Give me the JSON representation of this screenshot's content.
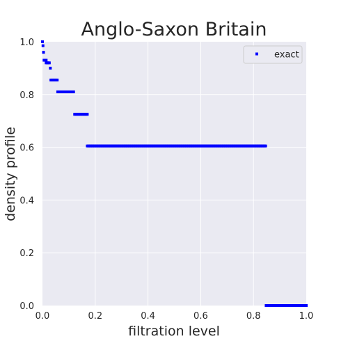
{
  "chart_data": {
    "type": "scatter",
    "title": "Anglo-Saxon Britain",
    "xlabel": "filtration level",
    "ylabel": "density profile",
    "xlim": [
      0,
      1
    ],
    "ylim": [
      0,
      1
    ],
    "x_ticks": [
      "0.0",
      "0.2",
      "0.4",
      "0.6",
      "0.8",
      "1.0"
    ],
    "y_ticks": [
      "0.0",
      "0.2",
      "0.4",
      "0.6",
      "0.8",
      "1.0"
    ],
    "grid": true,
    "legend_position": "top-right",
    "series": [
      {
        "name": "exact",
        "color": "#0000ff",
        "marker": "square",
        "segments": [
          {
            "y": 1.0,
            "x_start": 0.0,
            "x_end": 0.0
          },
          {
            "y": 0.985,
            "x_start": 0.002,
            "x_end": 0.002
          },
          {
            "y": 0.96,
            "x_start": 0.004,
            "x_end": 0.004
          },
          {
            "y": 0.93,
            "x_start": 0.006,
            "x_end": 0.012
          },
          {
            "y": 0.92,
            "x_start": 0.014,
            "x_end": 0.026
          },
          {
            "y": 0.9,
            "x_start": 0.03,
            "x_end": 0.03
          },
          {
            "y": 0.855,
            "x_start": 0.032,
            "x_end": 0.056
          },
          {
            "y": 0.81,
            "x_start": 0.058,
            "x_end": 0.12
          },
          {
            "y": 0.725,
            "x_start": 0.122,
            "x_end": 0.168
          },
          {
            "y": 0.605,
            "x_start": 0.17,
            "x_end": 0.846
          },
          {
            "y": 0.0,
            "x_start": 0.848,
            "x_end": 1.0
          }
        ],
        "step": 0.004
      }
    ]
  }
}
